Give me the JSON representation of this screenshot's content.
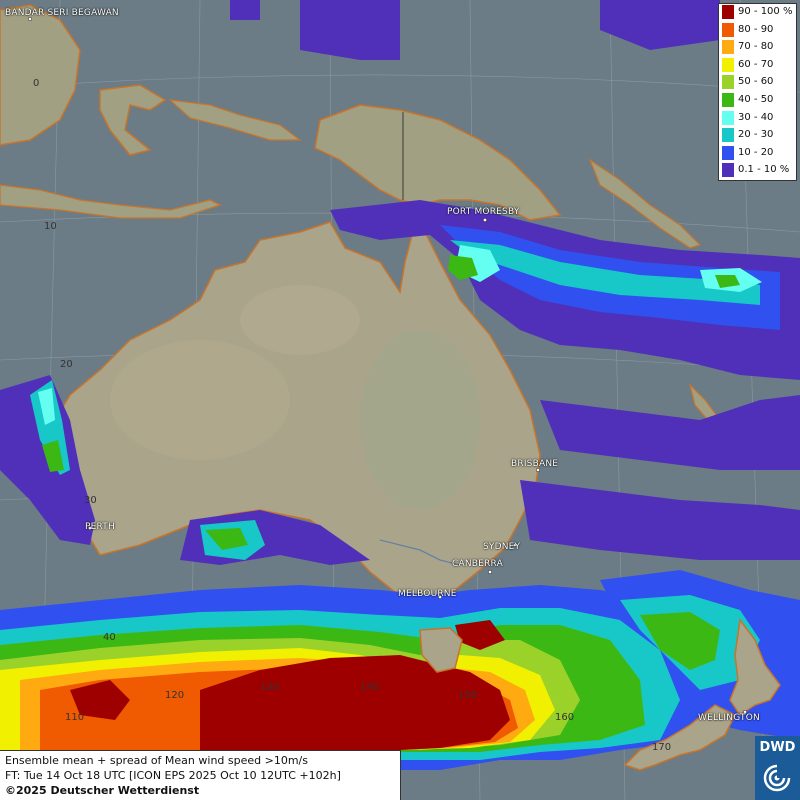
{
  "legend": {
    "items": [
      {
        "label": "90 - 100 %",
        "color": "#9e0000"
      },
      {
        "label": "80 - 90",
        "color": "#f05a00"
      },
      {
        "label": "70 - 80",
        "color": "#ffaa10"
      },
      {
        "label": "60 - 70",
        "color": "#f0f000"
      },
      {
        "label": "50 - 60",
        "color": "#9ad22a"
      },
      {
        "label": "40 - 50",
        "color": "#3cb814"
      },
      {
        "label": "30 - 40",
        "color": "#64fff0"
      },
      {
        "label": "20 - 30",
        "color": "#18c8c8"
      },
      {
        "label": "10 - 20",
        "color": "#3050f0"
      },
      {
        "label": "0.1 - 10 %",
        "color": "#5030b8"
      }
    ]
  },
  "cities": [
    {
      "name": "BANDAR SERI BEGAWAN"
    },
    {
      "name": "PORT MORESBY"
    },
    {
      "name": "BRISBANE"
    },
    {
      "name": "PERTH"
    },
    {
      "name": "SYDNEY"
    },
    {
      "name": "CANBERRA"
    },
    {
      "name": "MELBOURNE"
    },
    {
      "name": "WELLINGTON"
    }
  ],
  "grid_labels": {
    "lat_0": "0",
    "lat_10": "10",
    "lat_20": "20",
    "lat_30": "30",
    "lat_40": "40",
    "lon_110": "110",
    "lon_120": "120",
    "lon_130": "130",
    "lon_140": "140",
    "lon_150": "150",
    "lon_160": "160",
    "lon_170": "170"
  },
  "info": {
    "line1": "Ensemble mean + spread of Mean wind speed >10m/s",
    "line2": "FT: Tue 14 Oct 18 UTC [ICON EPS 2025 Oct 10 12UTC +102h]",
    "line3": "©2025 Deutscher Wetterdienst"
  },
  "logo": {
    "text": "DWD",
    "icon": "dwd-swirl-icon"
  },
  "colors": {
    "ocean": "#6b7c86",
    "land": "#a9a48a",
    "coast": "#c8742a"
  }
}
